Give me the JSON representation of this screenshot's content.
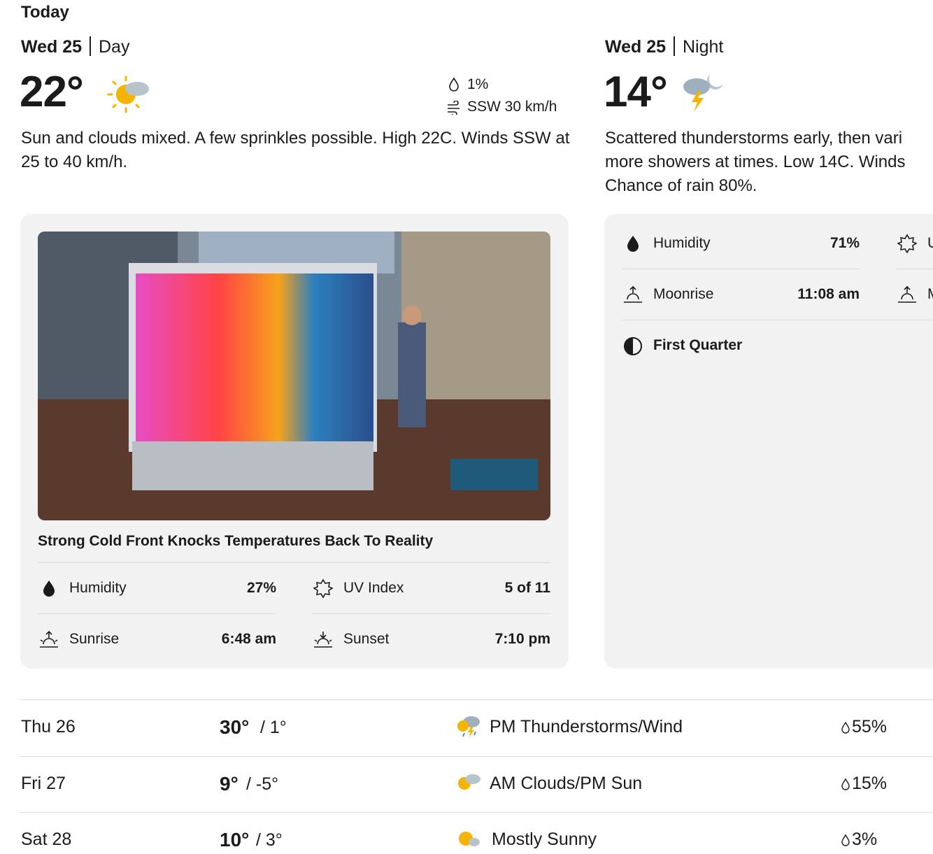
{
  "header": {
    "title": "Today"
  },
  "day": {
    "date": "Wed 25",
    "part": "Day",
    "temp": "22°",
    "precip": "1%",
    "wind": "SSW 30 km/h",
    "description": "Sun and clouds mixed. A few sprinkles possible. High 22C. Winds SSW at 25 to 40 km/h.",
    "video_title": "Strong Cold Front Knocks Temperatures Back To Reality",
    "details": [
      {
        "label": "Humidity",
        "value": "27%"
      },
      {
        "label": "UV Index",
        "value": "5 of 11"
      },
      {
        "label": "Sunrise",
        "value": "6:48 am"
      },
      {
        "label": "Sunset",
        "value": "7:10 pm"
      }
    ]
  },
  "night": {
    "date": "Wed 25",
    "part": "Night",
    "temp": "14°",
    "description_lines": [
      "Scattered thunderstorms early, then vari",
      "more showers at times. Low 14C. Winds",
      "Chance of rain 80%."
    ],
    "details": [
      {
        "label": "Humidity",
        "value": "71%"
      },
      {
        "label": "Moonrise",
        "value": "11:08 am"
      }
    ],
    "moon_phase": "First Quarter",
    "clipped_labels": [
      "U",
      "M"
    ]
  },
  "forecast": [
    {
      "day": "Thu 26",
      "high": "30°",
      "low": "/ 1°",
      "condition": "PM Thunderstorms/Wind",
      "precip": "55%"
    },
    {
      "day": "Fri 27",
      "high": "9°",
      "low": "/ -5°",
      "condition": "AM Clouds/PM Sun",
      "precip": "15%"
    },
    {
      "day": "Sat 28",
      "high": "10°",
      "low": "/ 3°",
      "condition": "Mostly Sunny",
      "precip": "3%"
    }
  ]
}
